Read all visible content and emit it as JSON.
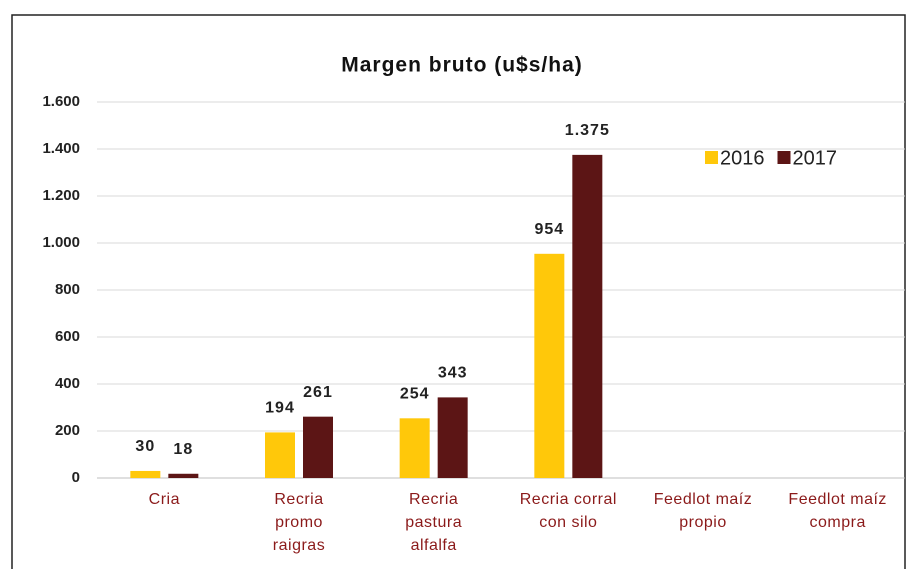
{
  "chart_data": {
    "type": "bar",
    "title": "Margen bruto (u$s/ha)",
    "categories": [
      "Cria",
      "Recria\npromo\nraigras",
      "Recria\npastura\nalfalfa",
      "Recria corral\ncon silo",
      "Feedlot maíz\npropio",
      "Feedlot maíz\ncompra"
    ],
    "series": [
      {
        "name": "2016",
        "color": "#ffc80a",
        "values": [
          30,
          194,
          254,
          954,
          null,
          null
        ],
        "value_labels": [
          "30",
          "194",
          "254",
          "954",
          null,
          null
        ]
      },
      {
        "name": "2017",
        "color": "#5c1515",
        "values": [
          18,
          261,
          343,
          1375,
          null,
          null
        ],
        "value_labels": [
          "18",
          "261",
          "343",
          "1.375",
          null,
          null
        ]
      }
    ],
    "ylim": [
      0,
      1600
    ],
    "yticks": [
      0,
      200,
      400,
      600,
      800,
      {
        "value": 1000,
        "label": "1.000"
      },
      {
        "value": 1200,
        "label": "1.200"
      },
      {
        "value": 1400,
        "label": "1.400"
      },
      {
        "value": 1600,
        "label": "1.600"
      }
    ],
    "grid": true,
    "legend": "top-right"
  }
}
